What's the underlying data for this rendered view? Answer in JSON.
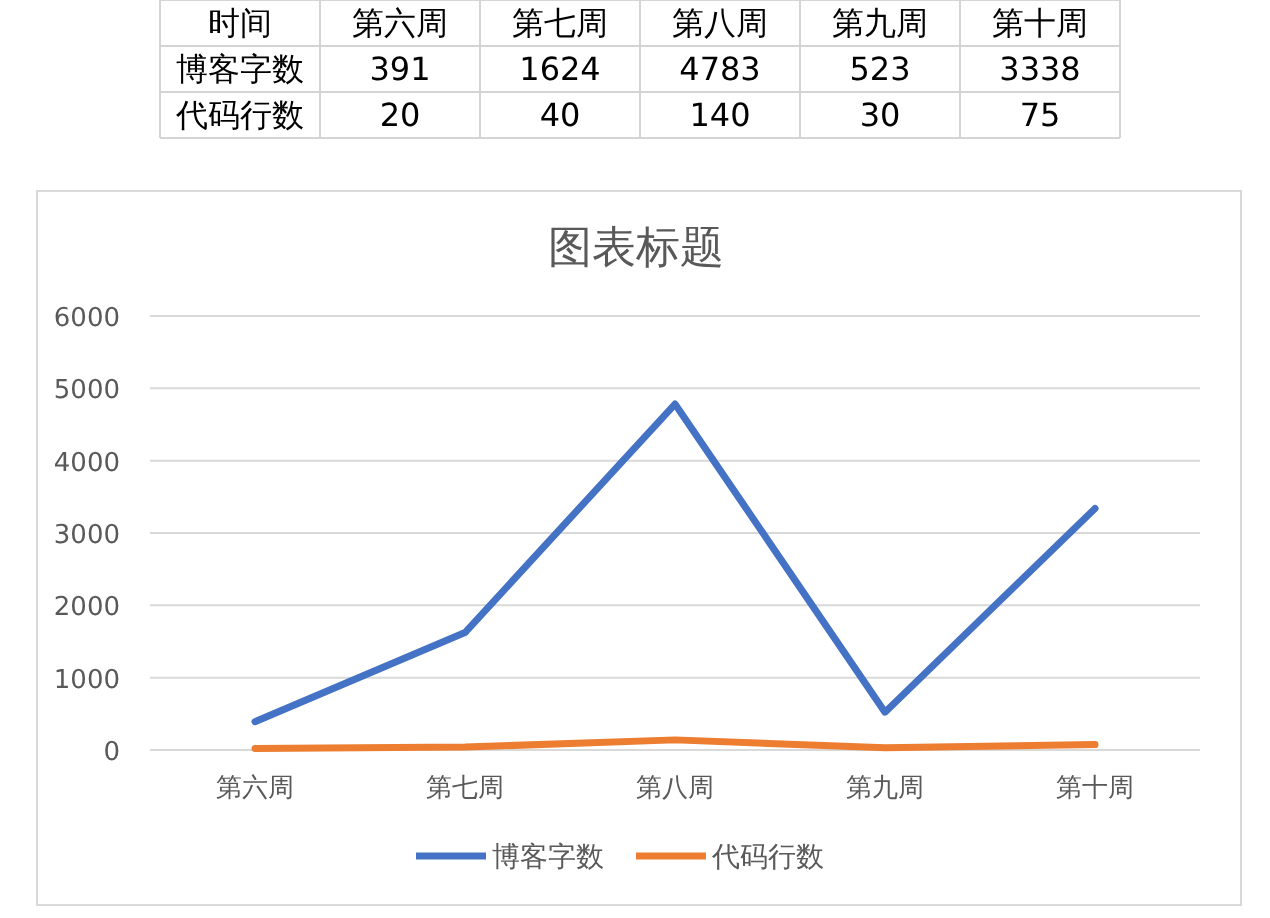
{
  "chart_data": {
    "type": "line",
    "title": "图表标题",
    "categories": [
      "第六周",
      "第七周",
      "第八周",
      "第九周",
      "第十周"
    ],
    "series": [
      {
        "name": "博客字数",
        "color": "#4472c4",
        "values": [
          391,
          1624,
          4783,
          523,
          3338
        ]
      },
      {
        "name": "代码行数",
        "color": "#ed7d31",
        "values": [
          20,
          40,
          140,
          30,
          75
        ]
      }
    ],
    "ylim": [
      0,
      6000
    ],
    "yticks": [
      0,
      1000,
      2000,
      3000,
      4000,
      5000,
      6000
    ],
    "grid": "y",
    "legend": "bottom",
    "marker": "none",
    "line_style": "solid",
    "annotations": [
      "时间",
      "391",
      "1624",
      "4783",
      "523",
      "3338",
      "20",
      "40",
      "140",
      "30",
      "75"
    ]
  }
}
